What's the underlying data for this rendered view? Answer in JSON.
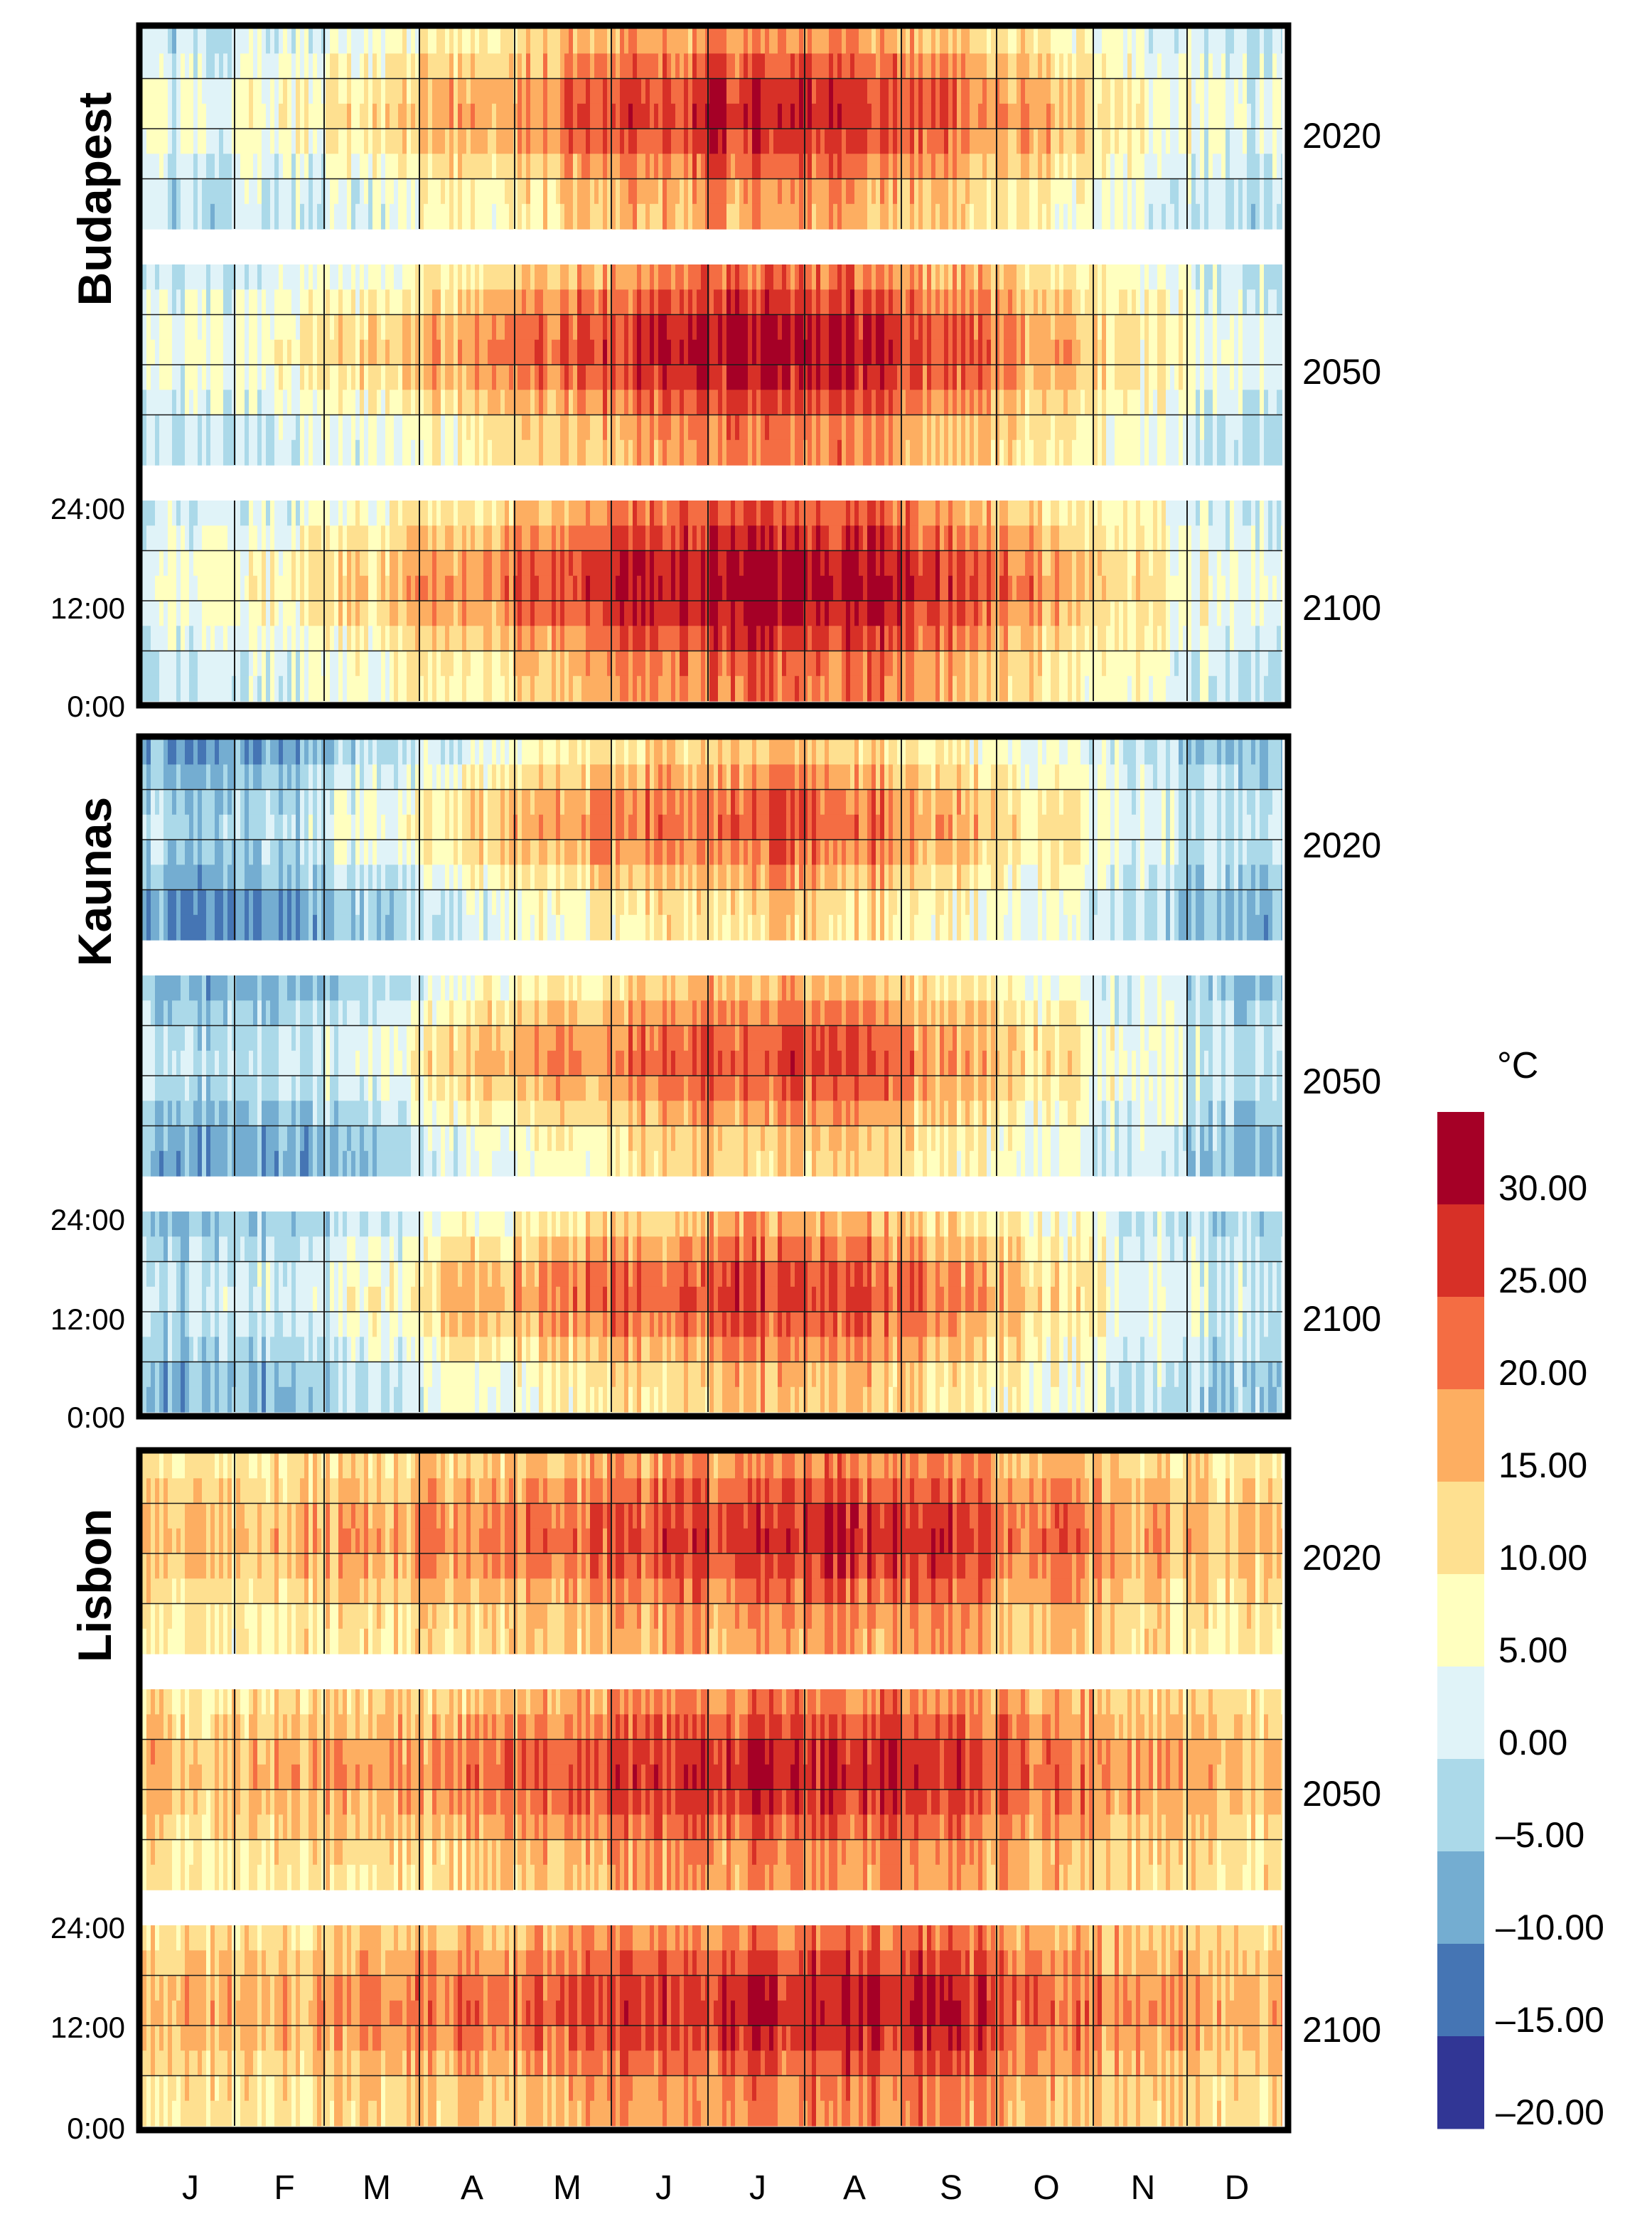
{
  "chart_data": {
    "type": "heatmap",
    "description_axes": {
      "x": "month of year",
      "y": "hour of day"
    },
    "months": [
      "J",
      "F",
      "M",
      "A",
      "M",
      "J",
      "J",
      "A",
      "S",
      "O",
      "N",
      "D"
    ],
    "time_ticks": [
      "0:00",
      "12:00",
      "24:00"
    ],
    "years": [
      "2020",
      "2050",
      "2100"
    ],
    "cities": [
      {
        "name": "Budapest",
        "scenarios": [
          {
            "year": "2020",
            "monthly_min_c": [
              -2,
              0,
              3,
              8,
              13,
              17,
              19,
              18,
              14,
              9,
              4,
              -1
            ],
            "monthly_max_c": [
              4,
              7,
              12,
              18,
              23,
              27,
              30,
              29,
              24,
              17,
              9,
              4
            ]
          },
          {
            "year": "2050",
            "monthly_min_c": [
              -1,
              1,
              4,
              9,
              14,
              18,
              21,
              20,
              15,
              10,
              5,
              0
            ],
            "monthly_max_c": [
              5,
              8,
              13,
              19,
              25,
              29,
              32,
              31,
              25,
              18,
              10,
              5
            ]
          },
          {
            "year": "2100",
            "monthly_min_c": [
              0,
              2,
              5,
              10,
              15,
              20,
              23,
              22,
              17,
              11,
              6,
              1
            ],
            "monthly_max_c": [
              6,
              9,
              14,
              21,
              26,
              31,
              34,
              33,
              27,
              20,
              11,
              6
            ]
          }
        ]
      },
      {
        "name": "Kaunas",
        "scenarios": [
          {
            "year": "2020",
            "monthly_min_c": [
              -10,
              -9,
              -4,
              2,
              7,
              11,
              13,
              12,
              8,
              4,
              0,
              -6
            ],
            "monthly_max_c": [
              -2,
              -1,
              5,
              13,
              19,
              22,
              25,
              24,
              18,
              11,
              4,
              0
            ]
          },
          {
            "year": "2050",
            "monthly_min_c": [
              -9,
              -8,
              -3,
              3,
              8,
              12,
              14,
              13,
              9,
              5,
              1,
              -5
            ],
            "monthly_max_c": [
              -1,
              0,
              6,
              14,
              20,
              23,
              26,
              25,
              19,
              12,
              5,
              1
            ]
          },
          {
            "year": "2100",
            "monthly_min_c": [
              -7,
              -6,
              -1,
              4,
              9,
              13,
              16,
              15,
              10,
              6,
              2,
              -3
            ],
            "monthly_max_c": [
              0,
              1,
              7,
              15,
              22,
              25,
              27,
              26,
              21,
              13,
              6,
              2
            ]
          }
        ]
      },
      {
        "name": "Lisbon",
        "scenarios": [
          {
            "year": "2020",
            "monthly_min_c": [
              9,
              10,
              11,
              12,
              14,
              17,
              18,
              19,
              18,
              15,
              12,
              10
            ],
            "monthly_max_c": [
              15,
              16,
              18,
              20,
              23,
              26,
              28,
              29,
              27,
              22,
              18,
              15
            ]
          },
          {
            "year": "2050",
            "monthly_min_c": [
              10,
              11,
              12,
              13,
              15,
              18,
              19,
              20,
              19,
              16,
              13,
              11
            ],
            "monthly_max_c": [
              16,
              17,
              19,
              21,
              24,
              27,
              29,
              30,
              28,
              23,
              19,
              16
            ]
          },
          {
            "year": "2100",
            "monthly_min_c": [
              11,
              12,
              13,
              14,
              16,
              19,
              20,
              21,
              20,
              17,
              14,
              12
            ],
            "monthly_max_c": [
              17,
              18,
              20,
              22,
              25,
              28,
              30,
              31,
              29,
              24,
              20,
              17
            ]
          }
        ]
      }
    ],
    "colorbar": {
      "unit": "°C",
      "labels": [
        "30.00",
        "25.00",
        "20.00",
        "15.00",
        "10.00",
        "5.00",
        "0.00",
        "–5.00",
        "–10.00",
        "–15.00",
        "–20.00"
      ],
      "bins_top_to_bottom": [
        {
          "range": "> 30",
          "color": "#a50026"
        },
        {
          "range": "25 – 30",
          "color": "#d73027"
        },
        {
          "range": "20 – 25",
          "color": "#f46d43"
        },
        {
          "range": "15 – 20",
          "color": "#fdae61"
        },
        {
          "range": "10 – 15",
          "color": "#fee090"
        },
        {
          "range": "5 – 10",
          "color": "#ffffbf"
        },
        {
          "range": "0 – 5",
          "color": "#e0f3f8"
        },
        {
          "range": "–5 – 0",
          "color": "#abd9e9"
        },
        {
          "range": "–10 – –5",
          "color": "#74add1"
        },
        {
          "range": "–15 – –10",
          "color": "#4575b4"
        },
        {
          "range": "< –15",
          "color": "#313695"
        }
      ],
      "range": [
        -20,
        35
      ]
    }
  }
}
